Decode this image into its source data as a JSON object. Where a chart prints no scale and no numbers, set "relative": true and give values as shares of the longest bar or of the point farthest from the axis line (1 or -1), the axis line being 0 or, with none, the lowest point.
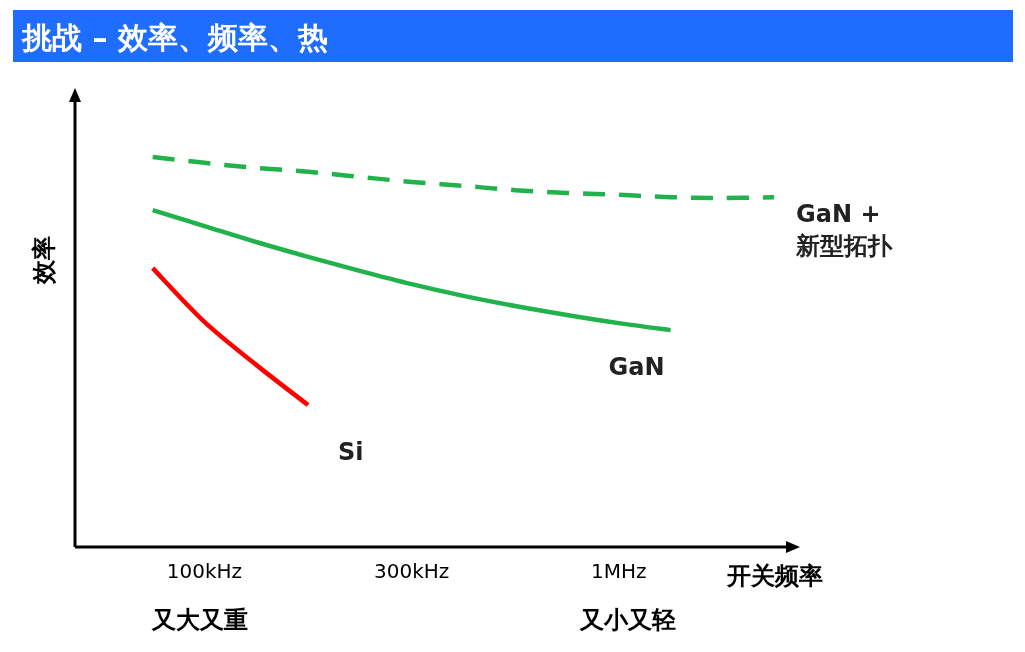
{
  "chart_data": {
    "type": "line",
    "title": "挑战 – 效率、频率、热",
    "xlabel": "开关频率",
    "ylabel": "效率",
    "relative": true,
    "legend": false,
    "categories": [
      null,
      "100kHz",
      null,
      null,
      null,
      "300kHz",
      null,
      null,
      null,
      "1MHz",
      null,
      null,
      null
    ],
    "series": [
      {
        "name": "GaN + 新型拓扑",
        "color": "#21b24b",
        "line_style": "dashed",
        "values": [
          1.0,
          0.985,
          0.972,
          0.962,
          0.949,
          0.936,
          0.926,
          0.915,
          0.908,
          0.903,
          0.897,
          0.895,
          0.897
        ]
      },
      {
        "name": "GaN",
        "color": "#21b24b",
        "line_style": "solid",
        "values": [
          0.864,
          0.823,
          0.782,
          0.744,
          0.708,
          0.674,
          0.644,
          0.618,
          0.595,
          0.574,
          0.556,
          null,
          null
        ]
      },
      {
        "name": "Si",
        "color": "#ff0000",
        "line_style": "solid",
        "values": [
          0.715,
          0.577,
          0.467,
          0.364,
          null,
          null,
          null,
          null,
          null,
          null,
          null,
          null,
          null
        ]
      }
    ],
    "annotations": [
      "又大又重",
      "又小又轻"
    ]
  }
}
